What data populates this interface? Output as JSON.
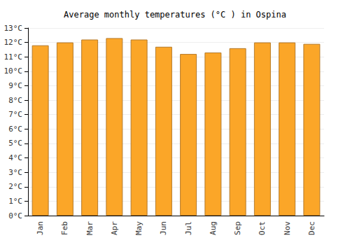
{
  "chart_data": {
    "type": "bar",
    "title": "Average monthly temperatures (°C ) in Ospina",
    "categories": [
      "Jan",
      "Feb",
      "Mar",
      "Apr",
      "May",
      "Jun",
      "Jul",
      "Aug",
      "Sep",
      "Oct",
      "Nov",
      "Dec"
    ],
    "values": [
      11.8,
      12.0,
      12.2,
      12.3,
      12.2,
      11.7,
      11.2,
      11.3,
      11.6,
      12.0,
      12.0,
      11.9
    ],
    "color": "#fba628",
    "ylim": [
      0,
      13
    ],
    "yticks": [
      {
        "value": 0,
        "label": "0°C"
      },
      {
        "value": 1,
        "label": "1°C"
      },
      {
        "value": 2,
        "label": "2°C"
      },
      {
        "value": 3,
        "label": "3°C"
      },
      {
        "value": 4,
        "label": "4°C"
      },
      {
        "value": 5,
        "label": "5°C"
      },
      {
        "value": 6,
        "label": "6°C"
      },
      {
        "value": 7,
        "label": "7°C"
      },
      {
        "value": 8,
        "label": "8°C"
      },
      {
        "value": 9,
        "label": "9°C"
      },
      {
        "value": 10,
        "label": "10°C"
      },
      {
        "value": 11,
        "label": "11°C"
      },
      {
        "value": 12,
        "label": "12°C"
      },
      {
        "value": 13,
        "label": "13°C"
      }
    ],
    "grid": true
  }
}
